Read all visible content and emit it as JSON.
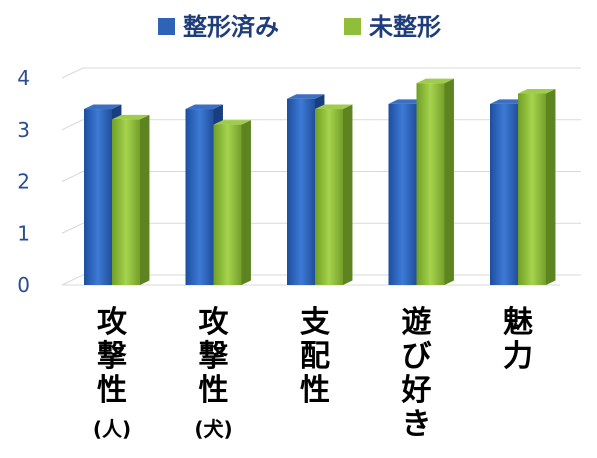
{
  "chart_data": {
    "type": "bar",
    "title": "",
    "xlabel": "",
    "ylabel": "",
    "ylim": [
      0,
      4
    ],
    "yticks": [
      "0",
      "1",
      "2",
      "3",
      "4"
    ],
    "grid": true,
    "legend_position": "top",
    "categories": [
      {
        "label": "攻撃性",
        "sub": "(人)"
      },
      {
        "label": "攻撃性",
        "sub": "(犬)"
      },
      {
        "label": "支配性",
        "sub": ""
      },
      {
        "label": "遊び好き",
        "sub": ""
      },
      {
        "label": "魅力",
        "sub": ""
      }
    ],
    "series": [
      {
        "name": "整形済み",
        "color": "#2e63b8",
        "values": [
          3.4,
          3.4,
          3.6,
          3.5,
          3.5
        ]
      },
      {
        "name": "未整形",
        "color": "#8fbf3a",
        "values": [
          3.2,
          3.1,
          3.4,
          3.9,
          3.7
        ]
      }
    ]
  }
}
